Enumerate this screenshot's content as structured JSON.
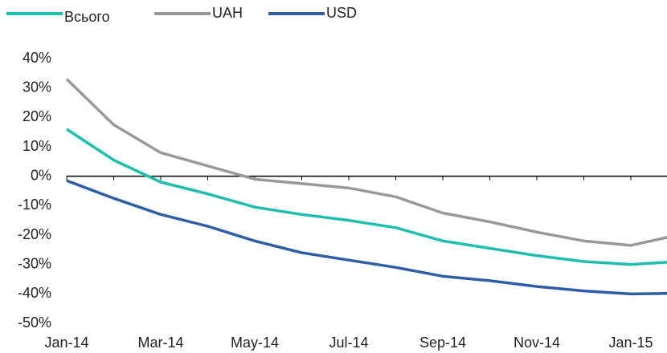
{
  "chart_data": {
    "type": "line",
    "categories": [
      "Jan-14",
      null,
      "Mar-14",
      null,
      "May-14",
      null,
      "Jul-14",
      null,
      "Sep-14",
      null,
      "Nov-14",
      null,
      "Jan-15",
      null
    ],
    "series": [
      {
        "name": "Всього",
        "color": "#1dbfae",
        "values": [
          16,
          5.5,
          -2,
          -6,
          -10.5,
          -13,
          -15,
          -17.5,
          -22,
          -24.5,
          -27,
          -29,
          -30,
          -29
        ]
      },
      {
        "name": "UAH",
        "color": "#999999",
        "values": [
          33,
          17.5,
          8,
          3.5,
          -1,
          -2.5,
          -4,
          -7,
          -12.5,
          -15.5,
          -19,
          -22,
          -23.5,
          -20
        ]
      },
      {
        "name": "USD",
        "color": "#2e5ea8",
        "values": [
          -1.5,
          -7.5,
          -13,
          -17,
          -22,
          -26,
          -28.5,
          -31,
          -34,
          -35.5,
          -37.5,
          -39,
          -40,
          -39.8
        ]
      }
    ],
    "ylim": [
      -50,
      40
    ],
    "yticks": [
      {
        "value": 40,
        "label": "40%"
      },
      {
        "value": 30,
        "label": "30%"
      },
      {
        "value": 20,
        "label": "20%"
      },
      {
        "value": 10,
        "label": "10%"
      },
      {
        "value": 0,
        "label": "0%"
      },
      {
        "value": -10,
        "label": "-10%"
      },
      {
        "value": -20,
        "label": "-20%"
      },
      {
        "value": -30,
        "label": "-30%"
      },
      {
        "value": -40,
        "label": "-40%"
      },
      {
        "value": -50,
        "label": "-50%"
      }
    ],
    "legend": "top-left"
  }
}
